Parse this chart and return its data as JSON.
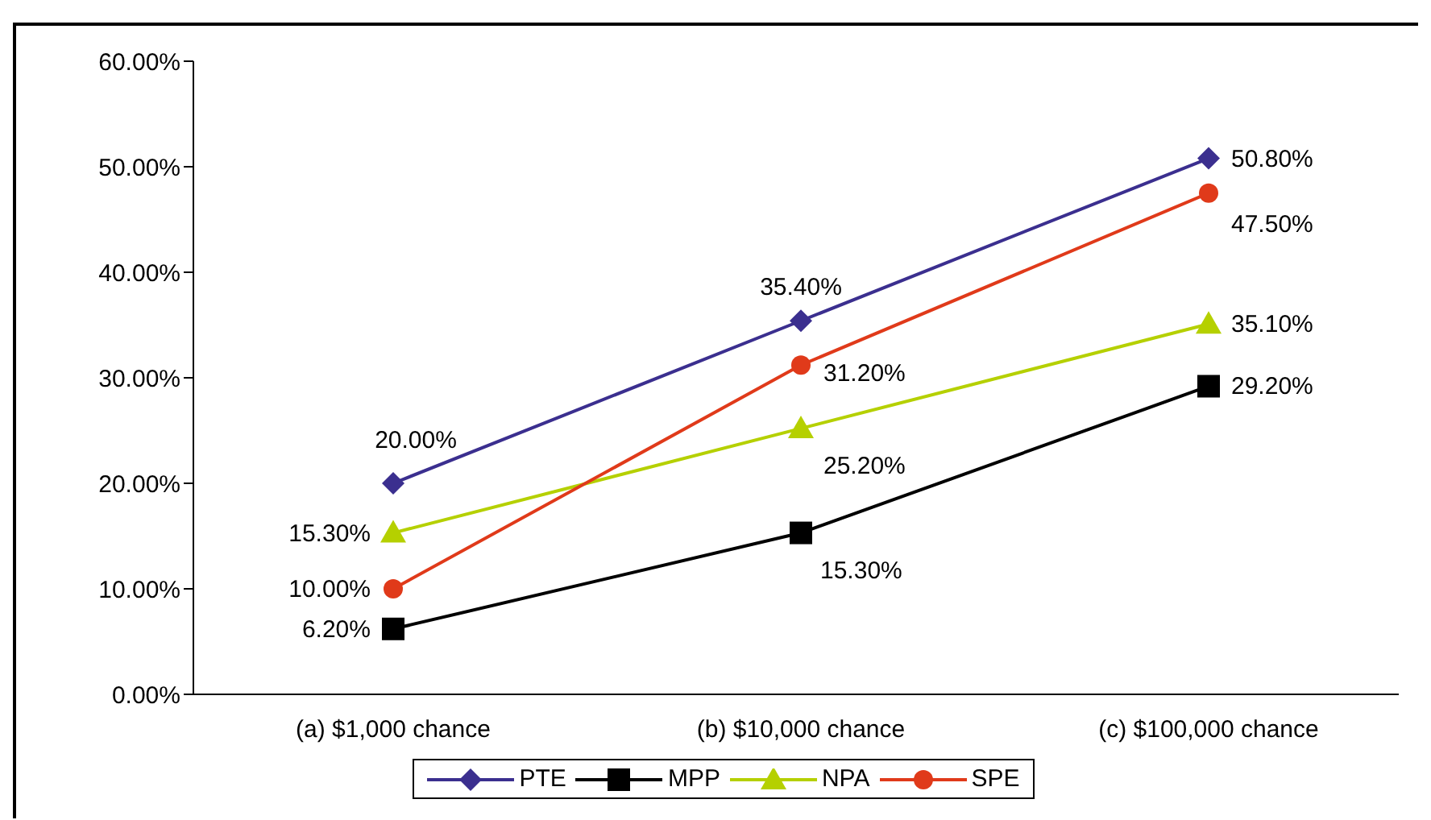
{
  "chart_data": {
    "type": "line",
    "categories": [
      "(a) $1,000 chance",
      "(b) $10,000 chance",
      "(c) $100,000 chance"
    ],
    "series": [
      {
        "name": "PTE",
        "color": "#3b2f8f",
        "marker": "diamond",
        "values": [
          20.0,
          35.4,
          50.8
        ],
        "value_labels": [
          "20.00%",
          "35.40%",
          "50.80%"
        ]
      },
      {
        "name": "MPP",
        "color": "#000000",
        "marker": "square",
        "values": [
          6.2,
          15.3,
          29.2
        ],
        "value_labels": [
          "6.20%",
          "15.30%",
          "29.20%"
        ]
      },
      {
        "name": "NPA",
        "color": "#b5d000",
        "marker": "triangle",
        "values": [
          15.3,
          25.2,
          35.1
        ],
        "value_labels": [
          "15.30%",
          "25.20%",
          "35.10%"
        ]
      },
      {
        "name": "SPE",
        "color": "#e03a1a",
        "marker": "circle",
        "values": [
          10.0,
          31.2,
          47.5
        ],
        "value_labels": [
          "10.00%",
          "31.20%",
          "47.50%"
        ]
      }
    ],
    "ylim": [
      0,
      60
    ],
    "yticks": [
      {
        "value": 0,
        "label": "0.00%"
      },
      {
        "value": 10,
        "label": "10.00%"
      },
      {
        "value": 20,
        "label": "20.00%"
      },
      {
        "value": 30,
        "label": "30.00%"
      },
      {
        "value": 40,
        "label": "40.00%"
      },
      {
        "value": 50,
        "label": "50.00%"
      },
      {
        "value": 60,
        "label": "60.00%"
      }
    ],
    "grid": false,
    "legend": "bottom",
    "line_style": "solid"
  }
}
